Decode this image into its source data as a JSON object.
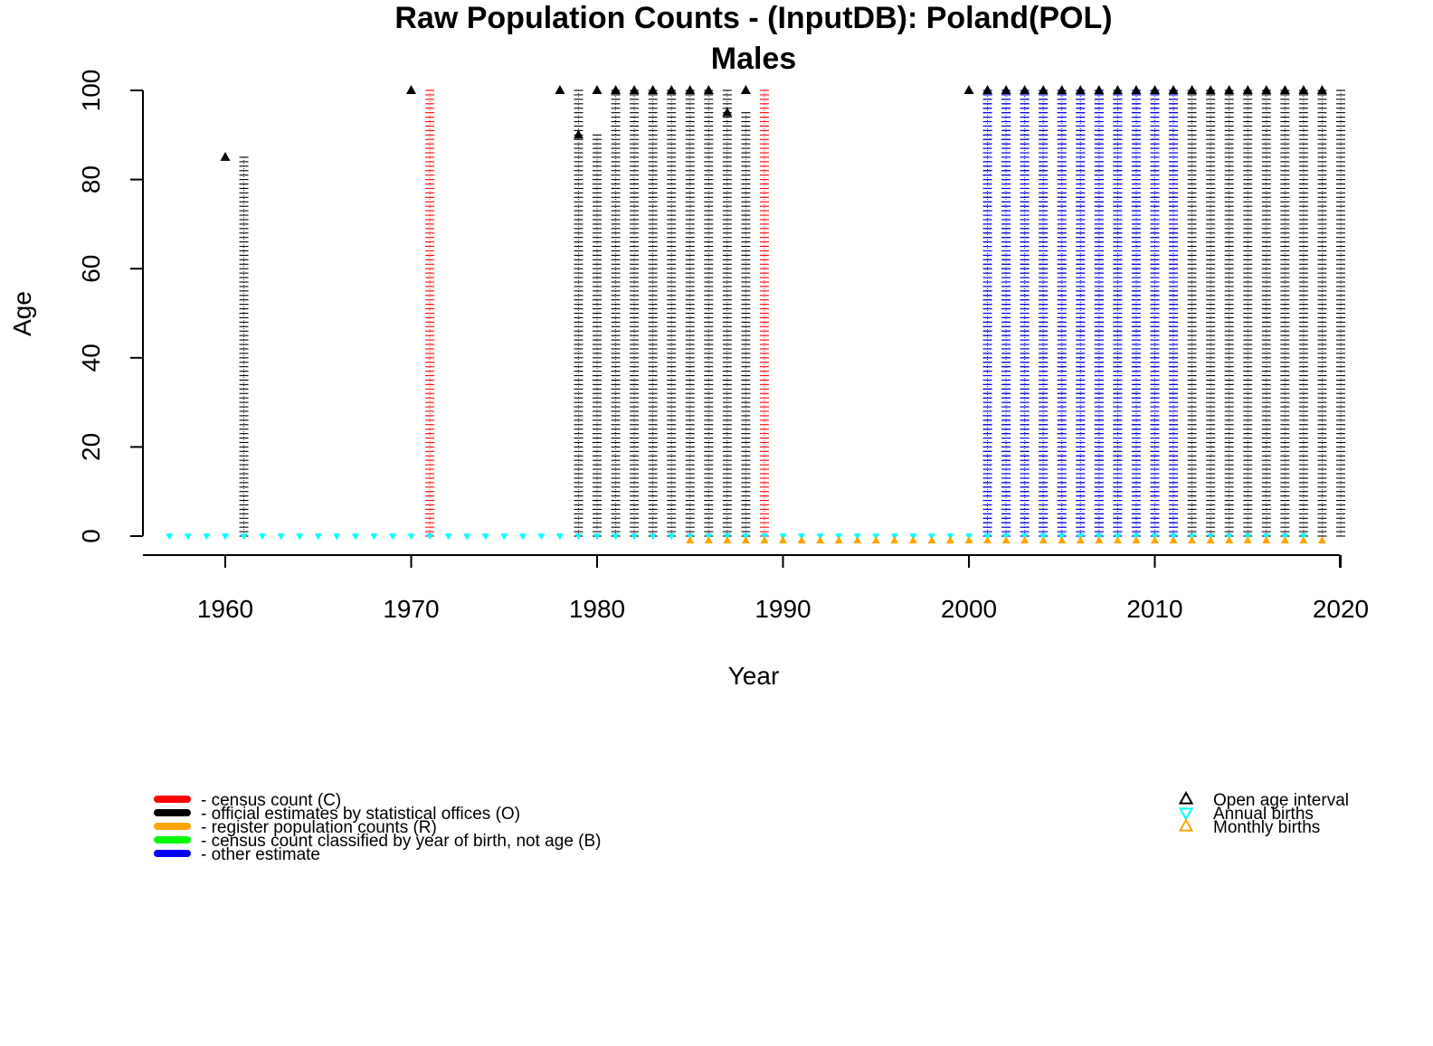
{
  "chart_data": {
    "type": "scatter",
    "title": "Raw Population Counts - (InputDB): Poland(POL)",
    "subtitle": "Males",
    "xlabel": "Year",
    "ylabel": "Age",
    "xlim": [
      1955.5,
      2020
    ],
    "ylim": [
      -4,
      100
    ],
    "x_ticks": [
      "1960",
      "1970",
      "1980",
      "1990",
      "2000",
      "2010",
      "2020"
    ],
    "y_ticks": [
      "0",
      "20",
      "40",
      "60",
      "80",
      "100"
    ],
    "grid": false,
    "colors": {
      "C": "#ff0000",
      "O": "#000000",
      "R": "#ffa500",
      "B": "#00ff00",
      "other": "#0000ff",
      "open_age": "#000000",
      "annual_births": "#00ffff",
      "monthly_births": "#ffa500"
    },
    "series": [
      {
        "type_code": "O",
        "columns": [
          {
            "year": 1961,
            "max_age": 85
          },
          {
            "year": 1979,
            "max_age": 100
          },
          {
            "year": 1980,
            "max_age": 90
          },
          {
            "year": 1981,
            "max_age": 100
          },
          {
            "year": 1982,
            "max_age": 100
          },
          {
            "year": 1983,
            "max_age": 100
          },
          {
            "year": 1984,
            "max_age": 100
          },
          {
            "year": 1985,
            "max_age": 100
          },
          {
            "year": 1986,
            "max_age": 100
          },
          {
            "year": 1987,
            "max_age": 100
          },
          {
            "year": 1988,
            "max_age": 95
          },
          {
            "year": 2001,
            "max_age": 100
          },
          {
            "year": 2002,
            "max_age": 100
          },
          {
            "year": 2003,
            "max_age": 100
          },
          {
            "year": 2004,
            "max_age": 100
          },
          {
            "year": 2005,
            "max_age": 100
          },
          {
            "year": 2006,
            "max_age": 100
          },
          {
            "year": 2007,
            "max_age": 100
          },
          {
            "year": 2008,
            "max_age": 100
          },
          {
            "year": 2009,
            "max_age": 100
          },
          {
            "year": 2010,
            "max_age": 100
          },
          {
            "year": 2011,
            "max_age": 100
          },
          {
            "year": 2012,
            "max_age": 100
          },
          {
            "year": 2013,
            "max_age": 100
          },
          {
            "year": 2014,
            "max_age": 100
          },
          {
            "year": 2015,
            "max_age": 100
          },
          {
            "year": 2016,
            "max_age": 100
          },
          {
            "year": 2017,
            "max_age": 100
          },
          {
            "year": 2018,
            "max_age": 100
          },
          {
            "year": 2019,
            "max_age": 100
          },
          {
            "year": 2020,
            "max_age": 100
          }
        ]
      },
      {
        "type_code": "C",
        "columns": [
          {
            "year": 1971,
            "max_age": 100
          },
          {
            "year": 1989,
            "max_age": 100
          }
        ]
      },
      {
        "type_code": "other",
        "columns": [
          {
            "year": 2001,
            "max_age": 100
          },
          {
            "year": 2002,
            "max_age": 100
          },
          {
            "year": 2003,
            "max_age": 100
          },
          {
            "year": 2004,
            "max_age": 100
          },
          {
            "year": 2005,
            "max_age": 100
          },
          {
            "year": 2006,
            "max_age": 100
          },
          {
            "year": 2007,
            "max_age": 100
          },
          {
            "year": 2008,
            "max_age": 100
          },
          {
            "year": 2009,
            "max_age": 100
          },
          {
            "year": 2010,
            "max_age": 100
          },
          {
            "year": 2011,
            "max_age": 100
          }
        ]
      }
    ],
    "open_age_markers": [
      {
        "year": 1960,
        "age": 85
      },
      {
        "year": 1970,
        "age": 100
      },
      {
        "year": 1978,
        "age": 100
      },
      {
        "year": 1979,
        "age": 90
      },
      {
        "year": 1980,
        "age": 100
      },
      {
        "year": 1981,
        "age": 100
      },
      {
        "year": 1982,
        "age": 100
      },
      {
        "year": 1983,
        "age": 100
      },
      {
        "year": 1984,
        "age": 100
      },
      {
        "year": 1985,
        "age": 100
      },
      {
        "year": 1986,
        "age": 100
      },
      {
        "year": 1987,
        "age": 95
      },
      {
        "year": 1988,
        "age": 100
      },
      {
        "year": 2000,
        "age": 100
      },
      {
        "year": 2001,
        "age": 100
      },
      {
        "year": 2002,
        "age": 100
      },
      {
        "year": 2003,
        "age": 100
      },
      {
        "year": 2004,
        "age": 100
      },
      {
        "year": 2005,
        "age": 100
      },
      {
        "year": 2006,
        "age": 100
      },
      {
        "year": 2007,
        "age": 100
      },
      {
        "year": 2008,
        "age": 100
      },
      {
        "year": 2009,
        "age": 100
      },
      {
        "year": 2010,
        "age": 100
      },
      {
        "year": 2011,
        "age": 100
      },
      {
        "year": 2012,
        "age": 100
      },
      {
        "year": 2013,
        "age": 100
      },
      {
        "year": 2014,
        "age": 100
      },
      {
        "year": 2015,
        "age": 100
      },
      {
        "year": 2016,
        "age": 100
      },
      {
        "year": 2017,
        "age": 100
      },
      {
        "year": 2018,
        "age": 100
      },
      {
        "year": 2019,
        "age": 100
      }
    ],
    "annual_births_years": [
      1958,
      1959,
      1960,
      1961,
      1962,
      1963,
      1964,
      1965,
      1966,
      1967,
      1968,
      1969,
      1970,
      1971,
      1972,
      1973,
      1974,
      1975,
      1976,
      1977,
      1978,
      1979,
      1980,
      1981,
      1982,
      1983,
      1984,
      1985,
      1986,
      1987,
      1988,
      1989,
      1990,
      1991,
      1992,
      1993,
      1994,
      1995,
      1996,
      1997,
      1998,
      1999,
      2000,
      2001,
      2002,
      2003,
      2004,
      2005,
      2006,
      2007,
      2008,
      2009,
      2010,
      2011,
      2012,
      2013,
      2014,
      2015,
      2016,
      2017,
      2018,
      2019
    ],
    "monthly_births_years": [
      1985,
      1986,
      1987,
      1988,
      1989,
      1990,
      1991,
      1992,
      1993,
      1994,
      1995,
      1996,
      1997,
      1998,
      1999,
      2000,
      2001,
      2002,
      2003,
      2004,
      2005,
      2006,
      2007,
      2008,
      2009,
      2010,
      2011,
      2012,
      2013,
      2014,
      2015,
      2016,
      2017,
      2018,
      2019
    ],
    "legend_left": [
      {
        "color": "#ff0000",
        "label": "- census count (C)"
      },
      {
        "color": "#000000",
        "label": "- official estimates by statistical offices (O)"
      },
      {
        "color": "#ffa500",
        "label": "- register population counts (R)"
      },
      {
        "color": "#00ff00",
        "label": "- census count classified by year of birth, not age (B)"
      },
      {
        "color": "#0000ff",
        "label": "- other estimate"
      }
    ],
    "legend_right": [
      {
        "symbol": "triangle-up",
        "color": "#000000",
        "label": "Open age interval"
      },
      {
        "symbol": "triangle-down",
        "color": "#00ffff",
        "label": "Annual births"
      },
      {
        "symbol": "triangle-up",
        "color": "#ffa500",
        "label": "Monthly births"
      }
    ]
  }
}
